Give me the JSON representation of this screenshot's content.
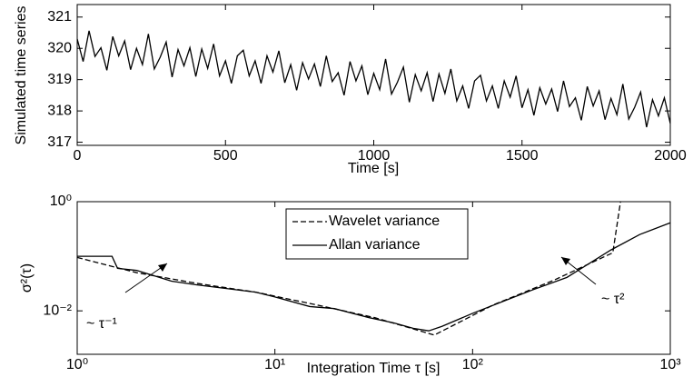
{
  "chart_data": [
    {
      "type": "line",
      "xlabel": "Time [s]",
      "ylabel": "Simulated time series",
      "x": [
        0,
        20,
        40,
        60,
        80,
        100,
        120,
        140,
        160,
        180,
        200,
        220,
        240,
        260,
        280,
        300,
        320,
        340,
        360,
        380,
        400,
        420,
        440,
        460,
        480,
        500,
        520,
        540,
        560,
        580,
        600,
        620,
        640,
        660,
        680,
        700,
        720,
        740,
        760,
        780,
        800,
        820,
        840,
        860,
        880,
        900,
        920,
        940,
        960,
        980,
        1000,
        1020,
        1040,
        1060,
        1080,
        1100,
        1120,
        1140,
        1160,
        1180,
        1200,
        1220,
        1240,
        1260,
        1280,
        1300,
        1320,
        1340,
        1360,
        1380,
        1400,
        1420,
        1440,
        1460,
        1480,
        1500,
        1520,
        1540,
        1560,
        1580,
        1600,
        1620,
        1640,
        1660,
        1680,
        1700,
        1720,
        1740,
        1760,
        1780,
        1800,
        1820,
        1840,
        1860,
        1880,
        1900,
        1920,
        1940,
        1960,
        1980,
        2000
      ],
      "series": [
        {
          "color": "#000000",
          "values": [
            320.3,
            319.58,
            320.56,
            319.74,
            320.02,
            319.3,
            320.38,
            319.76,
            320.24,
            319.32,
            320.0,
            319.48,
            320.46,
            319.34,
            319.72,
            320.2,
            319.08,
            319.96,
            319.44,
            320.02,
            319.1,
            319.98,
            319.36,
            320.14,
            319.12,
            319.6,
            318.88,
            319.76,
            319.94,
            319.12,
            319.6,
            318.88,
            319.76,
            319.24,
            319.92,
            318.9,
            319.48,
            318.66,
            319.54,
            319.02,
            319.5,
            318.78,
            319.76,
            318.94,
            319.22,
            318.5,
            319.58,
            318.96,
            319.44,
            318.52,
            319.2,
            318.68,
            319.66,
            318.54,
            318.92,
            319.4,
            318.28,
            319.16,
            318.64,
            319.22,
            318.3,
            319.18,
            318.56,
            319.34,
            318.32,
            318.8,
            318.08,
            318.96,
            319.14,
            318.32,
            318.8,
            318.08,
            318.96,
            318.44,
            319.12,
            318.1,
            318.68,
            317.86,
            318.74,
            318.22,
            318.7,
            317.98,
            318.96,
            318.14,
            318.42,
            317.7,
            318.78,
            318.16,
            318.64,
            317.72,
            318.4,
            317.88,
            318.86,
            317.74,
            318.12,
            318.6,
            317.48,
            318.36,
            317.84,
            318.42,
            317.6
          ]
        }
      ],
      "xlim": [
        0,
        2000
      ],
      "xticks": [
        0,
        500,
        1000,
        1500,
        2000
      ],
      "ylim": [
        316.9,
        321.4
      ],
      "yticks": [
        317,
        318,
        319,
        320,
        321
      ]
    },
    {
      "type": "line",
      "xlabel": "Integration Time τ [s]",
      "ylabel": "σ²(τ)",
      "xscale": "log",
      "yscale": "log",
      "legend": "upper center",
      "series": [
        {
          "name": "Wavelet variance",
          "color": "#000000",
          "linestyle": "dashed",
          "x": [
            1,
            2,
            4,
            8,
            16,
            32,
            64,
            128,
            256,
            512,
            560
          ],
          "values": [
            0.095,
            0.05,
            0.032,
            0.022,
            0.013,
            0.0075,
            0.0036,
            0.013,
            0.036,
            0.116,
            1.0
          ]
        },
        {
          "name": "Allan variance",
          "color": "#000000",
          "linestyle": "solid",
          "x": [
            1,
            1.5,
            1.6,
            2,
            3,
            4,
            6,
            8,
            10,
            15,
            20,
            30,
            40,
            50,
            60,
            70,
            100,
            150,
            200,
            300,
            500,
            700,
            1000
          ],
          "values": [
            0.1,
            0.1,
            0.06,
            0.055,
            0.035,
            0.03,
            0.025,
            0.022,
            0.018,
            0.012,
            0.011,
            0.0075,
            0.006,
            0.0048,
            0.0043,
            0.0052,
            0.009,
            0.016,
            0.024,
            0.041,
            0.13,
            0.25,
            0.41
          ]
        }
      ],
      "xlim": [
        1,
        1000
      ],
      "xticks": [
        {
          "value": 1,
          "label": "10⁰"
        },
        {
          "value": 10,
          "label": "10¹"
        },
        {
          "value": 100,
          "label": "10²"
        },
        {
          "value": 1000,
          "label": "10³"
        }
      ],
      "ylim": [
        0.0016,
        1
      ],
      "yticks": [
        {
          "value": 0.01,
          "label": "10⁻²"
        },
        {
          "value": 1,
          "label": "10⁰"
        }
      ],
      "annotations": [
        "~ τ⁻¹",
        "~ τ²"
      ]
    }
  ]
}
